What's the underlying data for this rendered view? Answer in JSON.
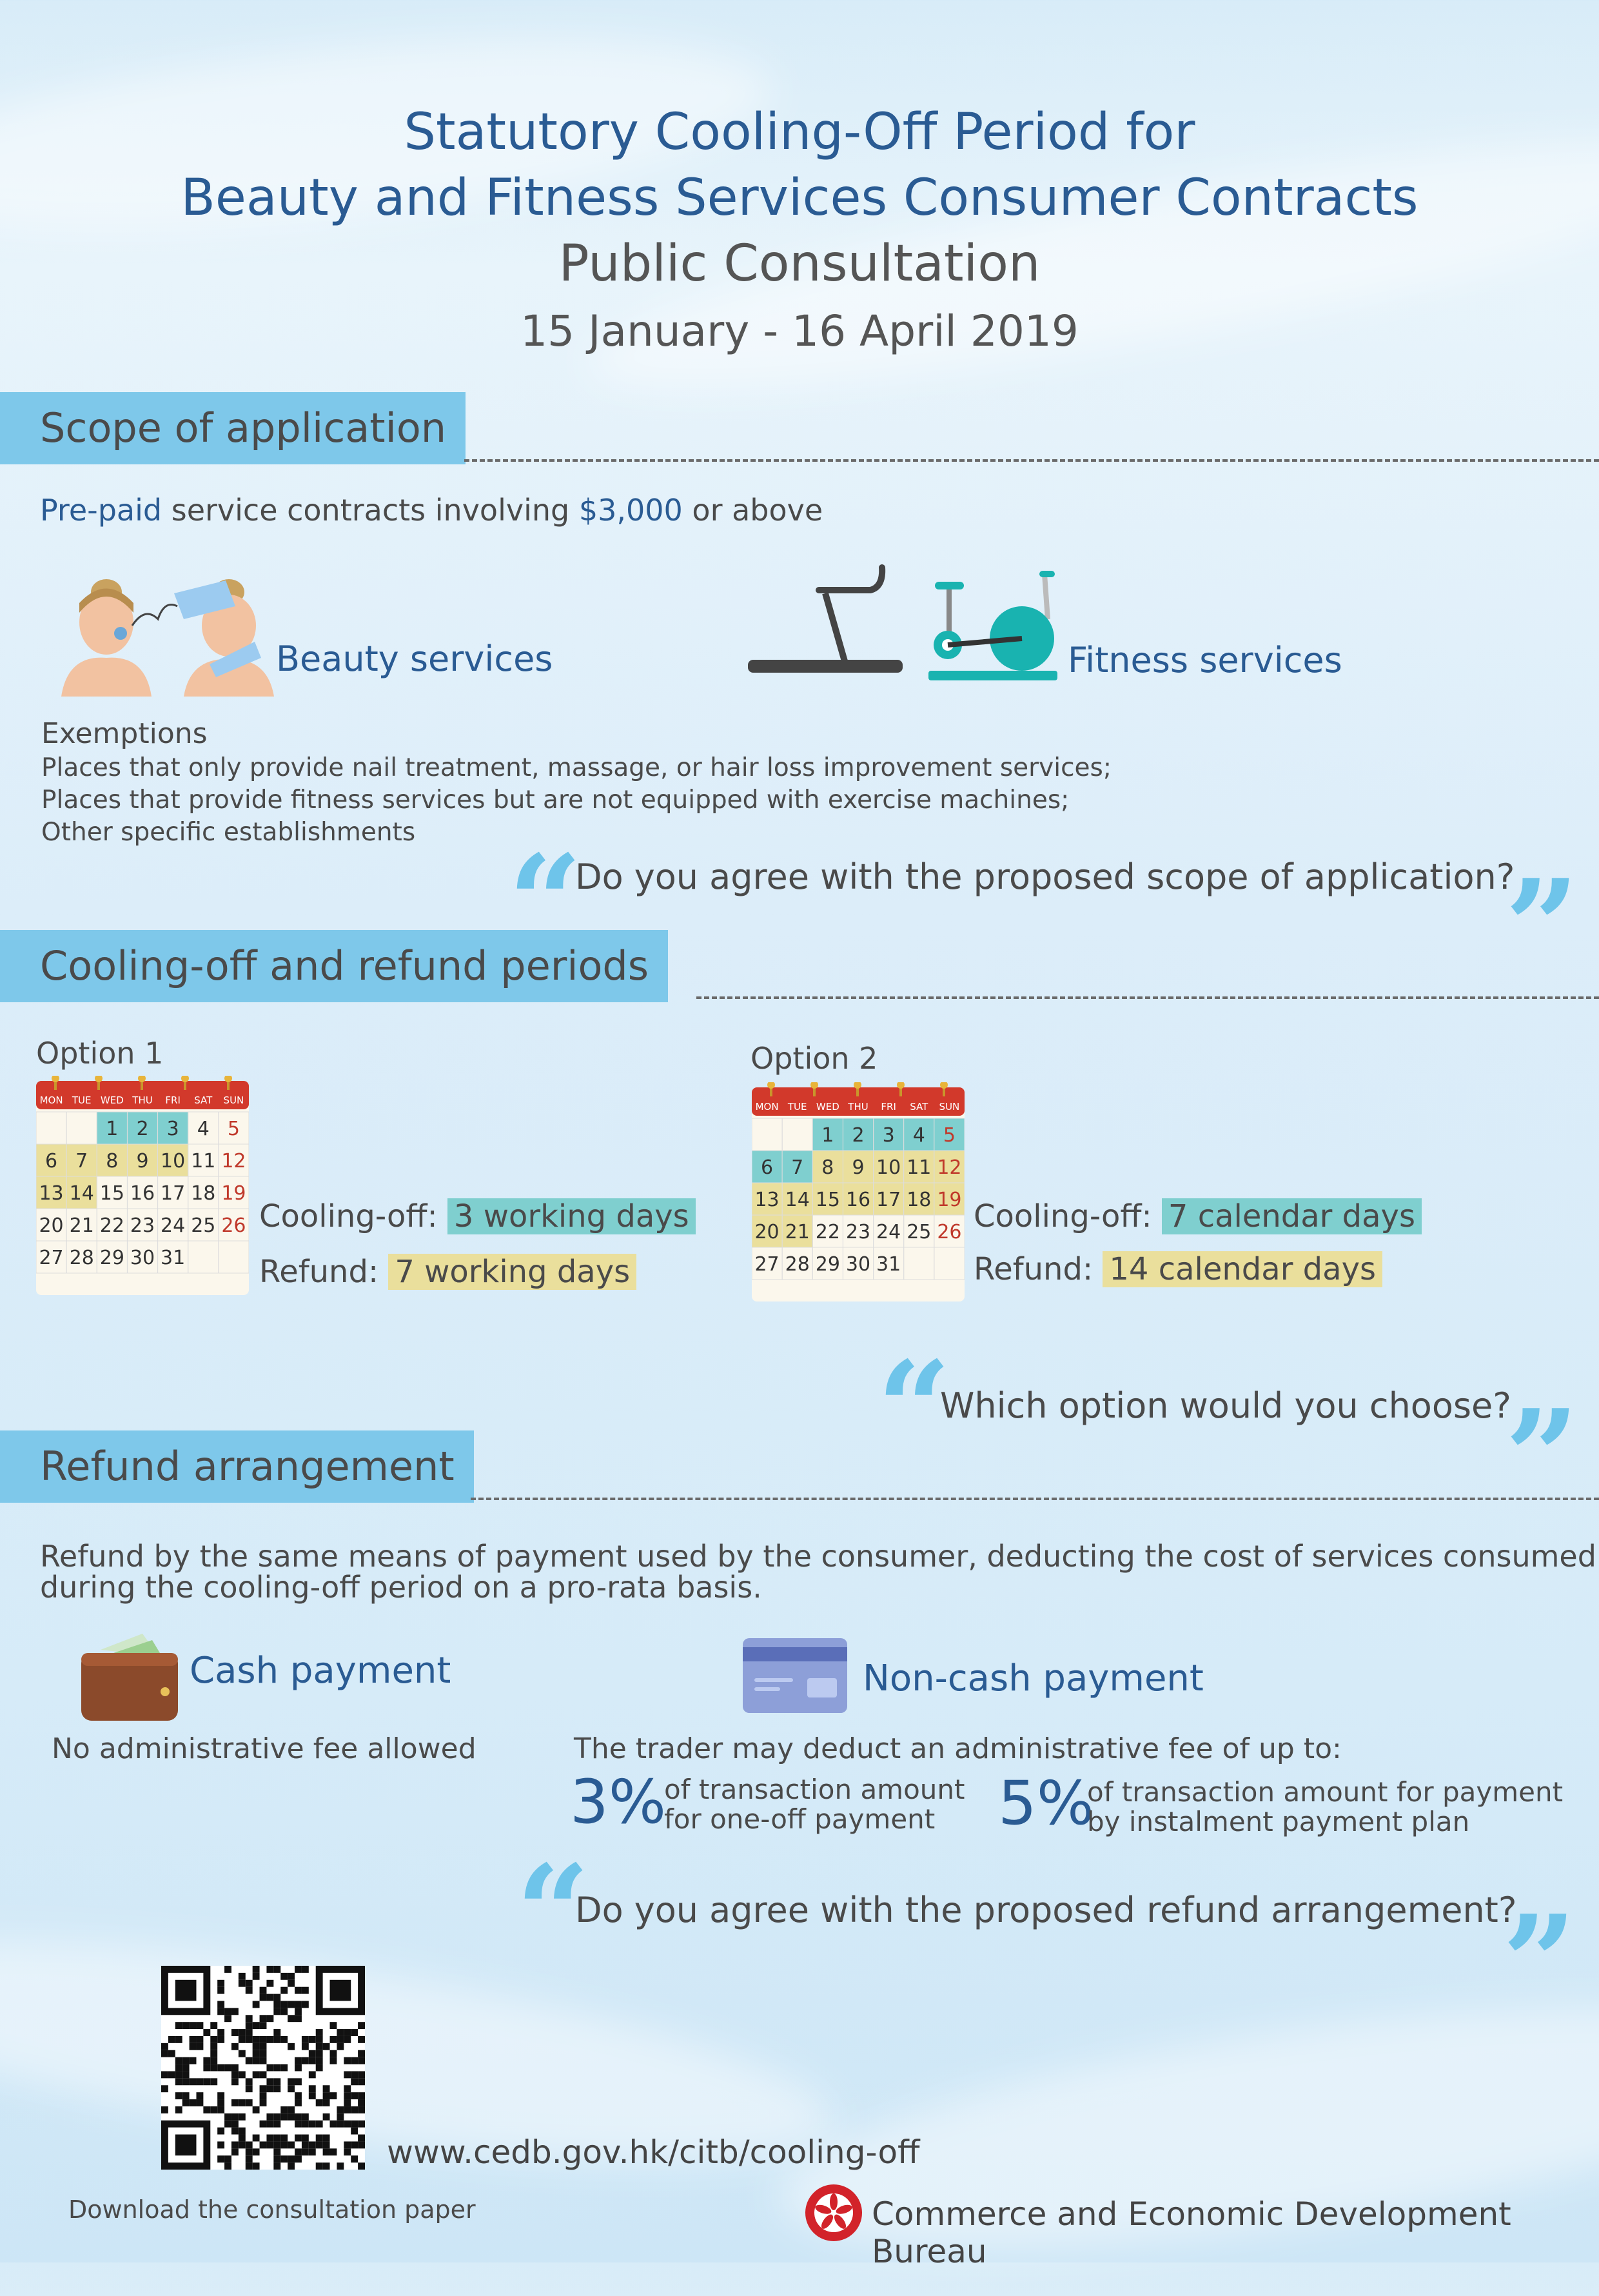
{
  "header": {
    "title_line1": "Statutory Cooling-Off Period for",
    "title_line2": "Beauty and Fitness Services Consumer Contracts",
    "subtitle": "Public Consultation",
    "dates": "15 January - 16 April 2019"
  },
  "scope": {
    "heading": "Scope of application",
    "intro_prepaid": "Pre-paid",
    "intro_mid": " service contracts involving ",
    "intro_amount": "$3,000",
    "intro_end": " or above",
    "beauty_label": "Beauty services",
    "fitness_label": "Fitness services",
    "exemptions_title": "Exemptions",
    "exemptions": [
      "Places that only provide nail treatment, massage, or hair loss improvement services;",
      "Places that provide fitness services but are not equipped with exercise machines;",
      "Other specific establishments"
    ],
    "question": "Do you agree with the proposed scope of application?"
  },
  "cooling": {
    "heading": "Cooling-off and refund periods",
    "weekdays": [
      "MON",
      "TUE",
      "WED",
      "THU",
      "FRI",
      "SAT",
      "SUN"
    ],
    "option1": {
      "label": "Option 1",
      "cooling_label": "Cooling-off:",
      "cooling_value": "3 working days",
      "refund_label": "Refund:",
      "refund_value": "7 working days"
    },
    "option2": {
      "label": "Option 2",
      "cooling_label": "Cooling-off:",
      "cooling_value": "7 calendar days",
      "refund_label": "Refund:",
      "refund_value": "14 calendar days"
    },
    "question": "Which option would you choose?"
  },
  "refund": {
    "heading": "Refund arrangement",
    "intro_line1": "Refund by the same means of payment used by the consumer, deducting the cost of services consumed",
    "intro_line2": "during the cooling-off period on a pro-rata basis.",
    "cash_label": "Cash payment",
    "cash_note": "No administrative fee allowed",
    "noncash_label": "Non-cash payment",
    "noncash_note": "The trader may deduct an administrative fee of up to:",
    "fee1_pct": "3%",
    "fee1_line1": "of transaction amount",
    "fee1_line2": "for one-off payment",
    "fee2_pct": "5%",
    "fee2_line1": "of transaction amount for payment",
    "fee2_line2": "by instalment payment plan",
    "question": "Do you agree with the proposed refund arrangement?"
  },
  "footer": {
    "url": "www.cedb.gov.hk/citb/cooling-off",
    "download": "Download the consultation paper",
    "bureau": "Commerce and Economic Development Bureau"
  },
  "colors": {
    "accent_blue": "#2a5b93",
    "tab_blue": "#7ec8ea",
    "teal": "#7fcfcf",
    "yellow": "#eadf9c",
    "calendar_red": "#d2392b"
  }
}
